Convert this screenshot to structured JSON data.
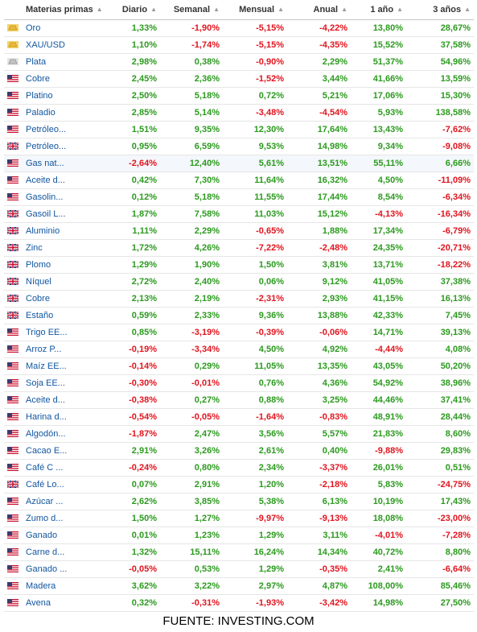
{
  "table": {
    "headers": [
      "Materias primas",
      "Diario",
      "Semanal",
      "Mensual",
      "Anual",
      "1 año",
      "3 años"
    ],
    "rows": [
      {
        "flag": "gold",
        "name": "Oro",
        "values": [
          "1,33%",
          "-1,90%",
          "-5,15%",
          "-4,22%",
          "13,80%",
          "28,67%"
        ]
      },
      {
        "flag": "gold",
        "name": "XAU/USD",
        "values": [
          "1,10%",
          "-1,74%",
          "-5,15%",
          "-4,35%",
          "15,52%",
          "37,58%"
        ]
      },
      {
        "flag": "silver",
        "name": "Plata",
        "values": [
          "2,98%",
          "0,38%",
          "-0,90%",
          "2,29%",
          "51,37%",
          "54,96%"
        ]
      },
      {
        "flag": "us",
        "name": "Cobre",
        "values": [
          "2,45%",
          "2,36%",
          "-1,52%",
          "3,44%",
          "41,66%",
          "13,59%"
        ]
      },
      {
        "flag": "us",
        "name": "Platino",
        "values": [
          "2,50%",
          "5,18%",
          "0,72%",
          "5,21%",
          "17,06%",
          "15,30%"
        ]
      },
      {
        "flag": "us",
        "name": "Paladio",
        "values": [
          "2,85%",
          "5,14%",
          "-3,48%",
          "-4,54%",
          "5,93%",
          "138,58%"
        ]
      },
      {
        "flag": "us",
        "name": "Petróleo...",
        "values": [
          "1,51%",
          "9,35%",
          "12,30%",
          "17,64%",
          "13,43%",
          "-7,62%"
        ]
      },
      {
        "flag": "uk",
        "name": "Petróleo...",
        "values": [
          "0,95%",
          "6,59%",
          "9,53%",
          "14,98%",
          "9,34%",
          "-9,08%"
        ]
      },
      {
        "flag": "us",
        "name": "Gas nat...",
        "values": [
          "-2,64%",
          "12,40%",
          "5,61%",
          "13,51%",
          "55,11%",
          "6,66%"
        ]
      },
      {
        "flag": "us",
        "name": "Aceite d...",
        "values": [
          "0,42%",
          "7,30%",
          "11,64%",
          "16,32%",
          "4,50%",
          "-11,09%"
        ]
      },
      {
        "flag": "us",
        "name": "Gasolin...",
        "values": [
          "0,12%",
          "5,18%",
          "11,55%",
          "17,44%",
          "8,54%",
          "-6,34%"
        ]
      },
      {
        "flag": "uk",
        "name": "Gasoil L...",
        "values": [
          "1,87%",
          "7,58%",
          "11,03%",
          "15,12%",
          "-4,13%",
          "-16,34%"
        ]
      },
      {
        "flag": "uk",
        "name": "Aluminio",
        "values": [
          "1,11%",
          "2,29%",
          "-0,65%",
          "1,88%",
          "17,34%",
          "-6,79%"
        ]
      },
      {
        "flag": "uk",
        "name": "Zinc",
        "values": [
          "1,72%",
          "4,26%",
          "-7,22%",
          "-2,48%",
          "24,35%",
          "-20,71%"
        ]
      },
      {
        "flag": "uk",
        "name": "Plomo",
        "values": [
          "1,29%",
          "1,90%",
          "1,50%",
          "3,81%",
          "13,71%",
          "-18,22%"
        ]
      },
      {
        "flag": "uk",
        "name": "Níquel",
        "values": [
          "2,72%",
          "2,40%",
          "0,06%",
          "9,12%",
          "41,05%",
          "37,38%"
        ]
      },
      {
        "flag": "uk",
        "name": "Cobre",
        "values": [
          "2,13%",
          "2,19%",
          "-2,31%",
          "2,93%",
          "41,15%",
          "16,13%"
        ]
      },
      {
        "flag": "uk",
        "name": "Estaño",
        "values": [
          "0,59%",
          "2,33%",
          "9,36%",
          "13,88%",
          "42,33%",
          "7,45%"
        ]
      },
      {
        "flag": "us",
        "name": "Trigo EE...",
        "values": [
          "0,85%",
          "-3,19%",
          "-0,39%",
          "-0,06%",
          "14,71%",
          "39,13%"
        ]
      },
      {
        "flag": "us",
        "name": "Arroz P...",
        "values": [
          "-0,19%",
          "-3,34%",
          "4,50%",
          "4,92%",
          "-4,44%",
          "4,08%"
        ]
      },
      {
        "flag": "us",
        "name": "Maíz EE...",
        "values": [
          "-0,14%",
          "0,29%",
          "11,05%",
          "13,35%",
          "43,05%",
          "50,20%"
        ]
      },
      {
        "flag": "us",
        "name": "Soja EE...",
        "values": [
          "-0,30%",
          "-0,01%",
          "0,76%",
          "4,36%",
          "54,92%",
          "38,96%"
        ]
      },
      {
        "flag": "us",
        "name": "Aceite d...",
        "values": [
          "-0,38%",
          "0,27%",
          "0,88%",
          "3,25%",
          "44,46%",
          "37,41%"
        ]
      },
      {
        "flag": "us",
        "name": "Harina d...",
        "values": [
          "-0,54%",
          "-0,05%",
          "-1,64%",
          "-0,83%",
          "48,91%",
          "28,44%"
        ]
      },
      {
        "flag": "us",
        "name": "Algodón...",
        "values": [
          "-1,87%",
          "2,47%",
          "3,56%",
          "5,57%",
          "21,83%",
          "8,60%"
        ]
      },
      {
        "flag": "us",
        "name": "Cacao E...",
        "values": [
          "2,91%",
          "3,26%",
          "2,61%",
          "0,40%",
          "-9,88%",
          "29,83%"
        ]
      },
      {
        "flag": "us",
        "name": "Café C ...",
        "values": [
          "-0,24%",
          "0,80%",
          "2,34%",
          "-3,37%",
          "26,01%",
          "0,51%"
        ]
      },
      {
        "flag": "uk",
        "name": "Café Lo...",
        "values": [
          "0,07%",
          "2,91%",
          "1,20%",
          "-2,18%",
          "5,83%",
          "-24,75%"
        ]
      },
      {
        "flag": "us",
        "name": "Azúcar ...",
        "values": [
          "2,62%",
          "3,85%",
          "5,38%",
          "6,13%",
          "10,19%",
          "17,43%"
        ]
      },
      {
        "flag": "us",
        "name": "Zumo d...",
        "values": [
          "1,50%",
          "1,27%",
          "-9,97%",
          "-9,13%",
          "18,08%",
          "-23,00%"
        ]
      },
      {
        "flag": "us",
        "name": "Ganado",
        "values": [
          "0,01%",
          "1,23%",
          "1,29%",
          "3,11%",
          "-4,01%",
          "-7,28%"
        ]
      },
      {
        "flag": "us",
        "name": "Carne d...",
        "values": [
          "1,32%",
          "15,11%",
          "16,24%",
          "14,34%",
          "40,72%",
          "8,80%"
        ]
      },
      {
        "flag": "us",
        "name": "Ganado ...",
        "values": [
          "-0,05%",
          "0,53%",
          "1,29%",
          "-0,35%",
          "2,41%",
          "-6,64%"
        ]
      },
      {
        "flag": "us",
        "name": "Madera",
        "values": [
          "3,62%",
          "3,22%",
          "2,97%",
          "4,87%",
          "108,00%",
          "85,46%"
        ]
      },
      {
        "flag": "us",
        "name": "Avena",
        "values": [
          "0,32%",
          "-0,31%",
          "-1,93%",
          "-3,42%",
          "14,98%",
          "27,50%"
        ]
      }
    ]
  },
  "footer": {
    "source": "FUENTE: INVESTING.COM"
  },
  "colors": {
    "positive": "#2b9a1e",
    "negative": "#e0141e",
    "link": "#1256a0"
  },
  "icons": {
    "gold": "gold-bar-icon",
    "silver": "silver-bar-icon",
    "us": "us-flag-icon",
    "uk": "uk-flag-icon"
  }
}
